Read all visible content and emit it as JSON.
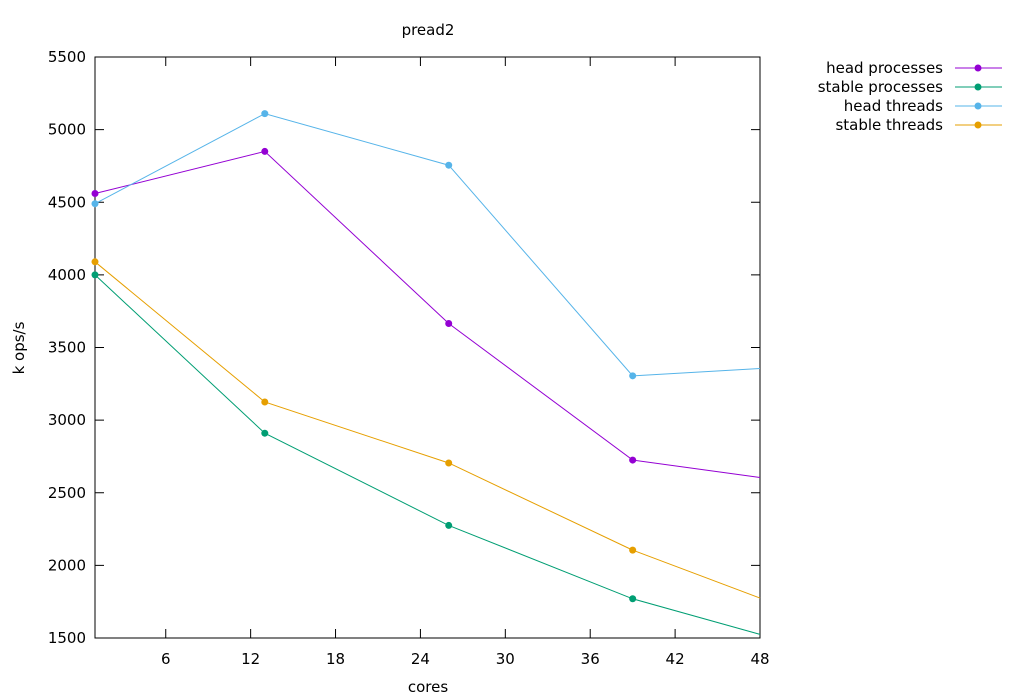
{
  "chart_data": {
    "type": "line",
    "title": "pread2",
    "xlabel": "cores",
    "ylabel": "k ops/s",
    "xlim": [
      1,
      48
    ],
    "ylim": [
      1500,
      5500
    ],
    "xticks": [
      6,
      12,
      18,
      24,
      30,
      36,
      42,
      48
    ],
    "yticks": [
      1500,
      2000,
      2500,
      3000,
      3500,
      4000,
      4500,
      5000,
      5500
    ],
    "grid": false,
    "legend_position": "outside-top-right",
    "x": [
      1,
      13,
      26,
      39,
      48
    ],
    "series": [
      {
        "name": "head processes",
        "color": "#9400d3",
        "values": [
          4560,
          4850,
          3665,
          2725,
          2605
        ]
      },
      {
        "name": "stable processes",
        "color": "#009e73",
        "values": [
          4000,
          2910,
          2275,
          1770,
          1525
        ]
      },
      {
        "name": "head threads",
        "color": "#56b4e9",
        "values": [
          4490,
          5110,
          4755,
          3305,
          3355
        ]
      },
      {
        "name": "stable threads",
        "color": "#e69f00",
        "values": [
          4090,
          3125,
          2705,
          2105,
          1775
        ]
      }
    ]
  }
}
